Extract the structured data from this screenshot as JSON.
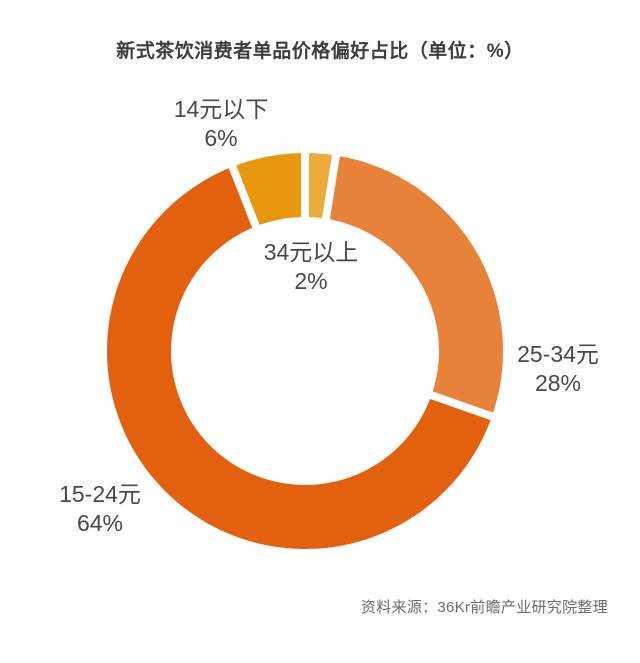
{
  "title": "新式茶饮消费者单品价格偏好占比（单位：%）",
  "source": "资料来源：36Kr前瞻产业研究院整理",
  "chart_data": {
    "type": "pie",
    "subtype": "donut",
    "title": "新式茶饮消费者单品价格偏好占比",
    "unit": "%",
    "start_angle_deg": 0,
    "direction": "clockwise",
    "inner_radius_ratio": 0.675,
    "min_angle_deg": 9,
    "separator_color": "#ffffff",
    "separator_width": 8,
    "legend": "none",
    "categories": [
      "34元以上",
      "25-34元",
      "15-24元",
      "14元以下"
    ],
    "values": [
      2,
      28,
      64,
      6
    ],
    "slices": [
      {
        "key": "over-34",
        "label": "34元以上",
        "value": 2,
        "pct_label": "2%",
        "color": "#EAAB3A"
      },
      {
        "key": "25-34",
        "label": "25-34元",
        "value": 28,
        "pct_label": "28%",
        "color": "#E8813A"
      },
      {
        "key": "15-24",
        "label": "15-24元",
        "value": 64,
        "pct_label": "64%",
        "color": "#E3600E"
      },
      {
        "key": "under-14",
        "label": "14元以下",
        "value": 6,
        "pct_label": "6%",
        "color": "#E8970C"
      }
    ]
  }
}
